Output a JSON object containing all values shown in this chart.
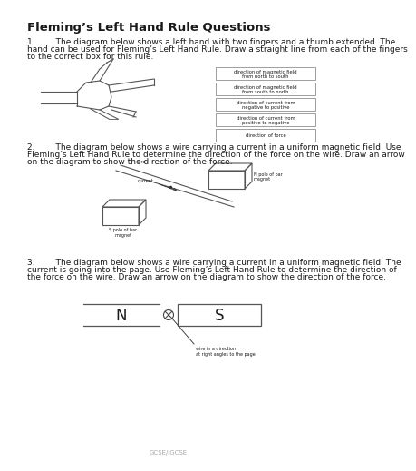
{
  "title": "Fleming’s Left Hand Rule Questions",
  "title_fontsize": 9.5,
  "body_fontsize": 6.5,
  "label_fontsize": 4.0,
  "background_color": "#ffffff",
  "text_color": "#1a1a1a",
  "q1_lines": [
    "1.        The diagram below shows a left hand with two fingers and a thumb extended. The",
    "hand can be used for Fleming’s Left Hand Rule. Draw a straight line from each of the fingers",
    "to the correct box for this rule."
  ],
  "q2_lines": [
    "2.        The diagram below shows a wire carrying a current in a uniform magnetic field. Use",
    "Fleming’s Left Hand Rule to determine the direction of the force on the wire. Draw an arrow",
    "on the diagram to show the direction of the force."
  ],
  "q3_lines": [
    "3.        The diagram below shows a wire carrying a current in a uniform magnetic field. The",
    "current is going into the page. Use Fleming’s Left Hand Rule to determine the direction of",
    "the force on the wire. Draw an arrow on the diagram to show the direction of the force."
  ],
  "boxes": [
    "direction of magnetic field\nfrom north to south",
    "direction of magnetic field\nfrom south to north",
    "direction of current from\nnegative to positive",
    "direction of current from\npositive to negative",
    "direction of force"
  ],
  "footer": "GCSE/IGCSE"
}
